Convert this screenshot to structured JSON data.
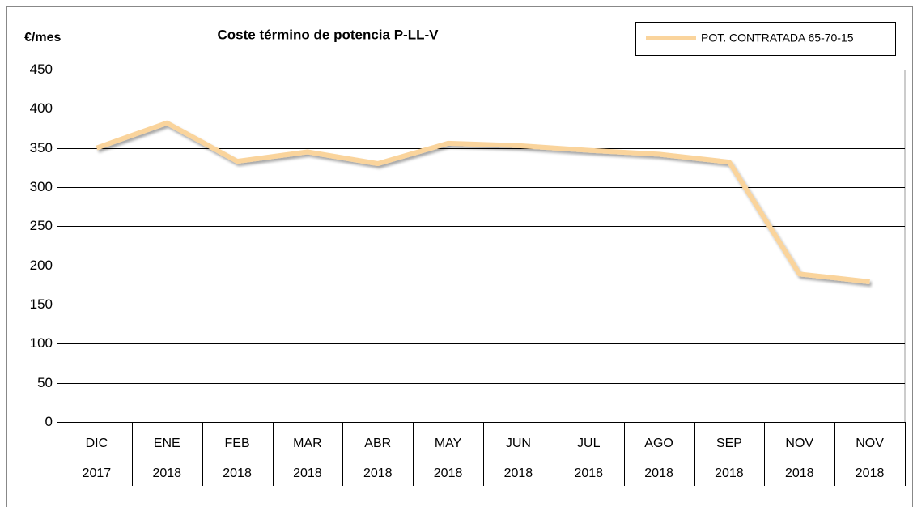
{
  "chart_data": {
    "type": "line",
    "title": "Coste término de potencia P-LL-V",
    "ylabel": "€/mes",
    "categories": [
      [
        "DIC",
        "2017"
      ],
      [
        "ENE",
        "2018"
      ],
      [
        "FEB",
        "2018"
      ],
      [
        "MAR",
        "2018"
      ],
      [
        "ABR",
        "2018"
      ],
      [
        "MAY",
        "2018"
      ],
      [
        "JUN",
        "2018"
      ],
      [
        "JUL",
        "2018"
      ],
      [
        "AGO",
        "2018"
      ],
      [
        "SEP",
        "2018"
      ],
      [
        "NOV",
        "2018"
      ],
      [
        "NOV",
        "2018"
      ]
    ],
    "series": [
      {
        "name": "POT. CONTRATADA 65-70-15",
        "color": "#fad49c",
        "values": [
          350,
          382,
          333,
          345,
          330,
          356,
          353,
          347,
          342,
          332,
          189,
          179
        ]
      }
    ],
    "ylim": [
      0,
      450
    ],
    "yticks": [
      0,
      50,
      100,
      150,
      200,
      250,
      300,
      350,
      400,
      450
    ],
    "grid": true,
    "legend": "top-right"
  }
}
